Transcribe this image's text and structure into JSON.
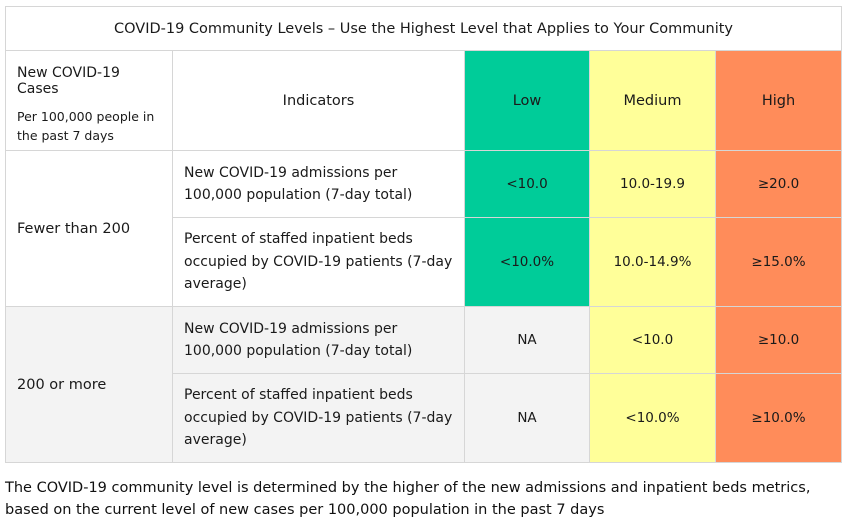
{
  "title": "COVID-19 Community Levels – Use the Highest Level that Applies to Your Community",
  "header": {
    "cases_title": "New COVID-19 Cases",
    "cases_subtitle": "Per 100,000 people in the past 7 days",
    "indicators": "Indicators",
    "low": "Low",
    "medium": "Medium",
    "high": "High"
  },
  "colors": {
    "low": "#00cc99",
    "medium": "#ffff99",
    "high": "#ff8c5a"
  },
  "groups": [
    {
      "label": "Fewer than 200",
      "rows": [
        {
          "indicator": "New COVID-19 admissions per 100,000 population (7-day total)",
          "low": "<10.0",
          "medium": "10.0-19.9",
          "high": "≥20.0"
        },
        {
          "indicator": "Percent of staffed inpatient beds occupied by COVID-19 patients (7-day average)",
          "low": "<10.0%",
          "medium": "10.0-14.9%",
          "high": "≥15.0%"
        }
      ]
    },
    {
      "label": "200 or more",
      "rows": [
        {
          "indicator": "New COVID-19 admissions per 100,000 population (7-day total)",
          "low": "NA",
          "medium": "<10.0",
          "high": "≥10.0"
        },
        {
          "indicator": "Percent of staffed inpatient beds occupied by COVID-19 patients (7-day average)",
          "low": "NA",
          "medium": "<10.0%",
          "high": "≥10.0%"
        }
      ]
    }
  ],
  "footer": "The COVID-19 community level is determined by the higher of the new admissions and inpatient beds metrics, based on the current level of new cases per 100,000 population in the past 7 days"
}
